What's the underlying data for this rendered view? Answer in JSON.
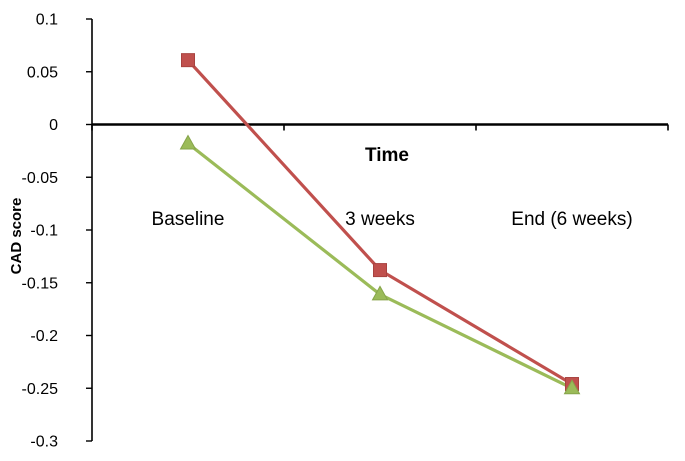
{
  "chart_data": {
    "type": "line",
    "title": "",
    "xlabel": "Time",
    "ylabel": "CAD score",
    "categories": [
      "Baseline",
      "3 weeks",
      "End (6 weeks)"
    ],
    "ylim": [
      -0.3,
      0.1
    ],
    "yticks": [
      0.1,
      0.05,
      0,
      -0.05,
      -0.1,
      -0.15,
      -0.2,
      -0.25,
      -0.3
    ],
    "ytick_labels": [
      "0.1",
      "0.05",
      "0",
      "-0.05",
      "-0.1",
      "-0.15",
      "-0.2",
      "-0.25",
      "-0.3"
    ],
    "grid": false,
    "legend": "none",
    "series": [
      {
        "values": [
          0.061,
          -0.138,
          -0.246
        ],
        "color": "#C0504D",
        "marker": "square"
      },
      {
        "values": [
          -0.018,
          -0.161,
          -0.25
        ],
        "color": "#9BBB59",
        "marker": "triangle"
      }
    ]
  }
}
